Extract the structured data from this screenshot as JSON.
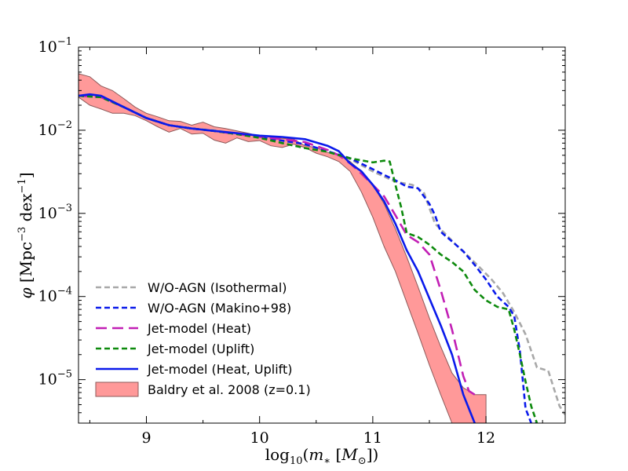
{
  "chart_data": {
    "type": "line",
    "xlabel": "log10(m* [M⊙])",
    "ylabel": "φ [Mpc⁻³ dex⁻¹]",
    "xlim": [
      8.4,
      12.7
    ],
    "ylim": [
      3e-06,
      0.1
    ],
    "yscale": "log",
    "grid": false,
    "legend_position": "lower-left",
    "x_ticks": [
      9,
      10,
      11,
      12
    ],
    "x_tick_labels": [
      "9",
      "10",
      "11",
      "12"
    ],
    "y_ticks": [
      1e-05,
      0.0001,
      0.001,
      0.01,
      0.1
    ],
    "y_tick_labels": [
      {
        "base": "10",
        "exp": "−5"
      },
      {
        "base": "10",
        "exp": "−4"
      },
      {
        "base": "10",
        "exp": "−3"
      },
      {
        "base": "10",
        "exp": "−2"
      },
      {
        "base": "10",
        "exp": "−1"
      }
    ],
    "band": {
      "name": "Baldry et al. 2008 (z=0.1)",
      "color": "#ff9999",
      "edge_color": "#8c5a5a",
      "x": [
        8.4,
        8.5,
        8.6,
        8.7,
        8.8,
        8.9,
        9.0,
        9.1,
        9.2,
        9.3,
        9.4,
        9.5,
        9.6,
        9.7,
        9.8,
        9.9,
        10.0,
        10.1,
        10.2,
        10.3,
        10.4,
        10.5,
        10.6,
        10.7,
        10.8,
        10.9,
        11.0,
        11.1,
        11.2,
        11.3,
        11.4,
        11.5,
        11.6,
        11.7,
        11.8,
        11.9,
        12.0
      ],
      "upper": [
        0.048,
        0.044,
        0.034,
        0.03,
        0.024,
        0.019,
        0.016,
        0.0145,
        0.013,
        0.0128,
        0.0115,
        0.0125,
        0.011,
        0.0105,
        0.0098,
        0.0092,
        0.0085,
        0.0083,
        0.008,
        0.0078,
        0.0065,
        0.0062,
        0.0054,
        0.005,
        0.0042,
        0.0032,
        0.0022,
        0.0013,
        0.00065,
        0.0003,
        0.00013,
        5.5e-05,
        2.5e-05,
        1.2e-05,
        8e-06,
        6.6e-06,
        6.6e-06
      ],
      "lower": [
        0.025,
        0.02,
        0.018,
        0.016,
        0.016,
        0.015,
        0.013,
        0.011,
        0.0095,
        0.0105,
        0.009,
        0.0092,
        0.0076,
        0.007,
        0.0081,
        0.0073,
        0.0075,
        0.0065,
        0.0062,
        0.0068,
        0.0062,
        0.0053,
        0.0048,
        0.0042,
        0.0032,
        0.0018,
        0.0009,
        0.0004,
        0.0002,
        8.5e-05,
        3.6e-05,
        1.5e-05,
        6.6e-06,
        3e-06,
        3e-06,
        3e-06,
        3e-06
      ]
    },
    "series": [
      {
        "name": "W/O-AGN (Isothermal)",
        "color": "#a8a8a8",
        "style": "dashed",
        "x": [
          8.4,
          8.6,
          8.8,
          9.0,
          9.2,
          9.4,
          9.6,
          9.8,
          10.0,
          10.2,
          10.4,
          10.6,
          10.8,
          11.0,
          11.2,
          11.35,
          11.45,
          11.55,
          11.65,
          11.75,
          11.85,
          11.95,
          12.05,
          12.15,
          12.25,
          12.35,
          12.45,
          12.55,
          12.65,
          12.7
        ],
        "y": [
          0.026,
          0.025,
          0.019,
          0.014,
          0.0115,
          0.0105,
          0.01,
          0.009,
          0.0082,
          0.0075,
          0.0068,
          0.0055,
          0.0045,
          0.0032,
          0.0024,
          0.0022,
          0.0018,
          0.00075,
          0.00055,
          0.0004,
          0.0003,
          0.00022,
          0.00016,
          0.00011,
          6.5e-05,
          3.5e-05,
          1.4e-05,
          1.28e-05,
          4.8e-06,
          3.8e-06
        ]
      },
      {
        "name": "W/O-AGN (Makino+98)",
        "color": "#0a1aeb",
        "style": "dashed",
        "x": [
          8.4,
          8.6,
          8.8,
          9.0,
          9.2,
          9.4,
          9.6,
          9.8,
          10.0,
          10.2,
          10.4,
          10.6,
          10.8,
          11.0,
          11.1,
          11.2,
          11.3,
          11.4,
          11.5,
          11.55,
          11.6,
          11.7,
          11.8,
          11.9,
          12.0,
          12.1,
          12.2,
          12.25,
          12.3,
          12.35,
          12.4,
          12.45
        ],
        "y": [
          0.026,
          0.025,
          0.019,
          0.014,
          0.0115,
          0.0105,
          0.0098,
          0.009,
          0.0082,
          0.0075,
          0.0068,
          0.0056,
          0.0046,
          0.0034,
          0.0029,
          0.0025,
          0.0021,
          0.002,
          0.0013,
          0.00095,
          0.0006,
          0.00046,
          0.00035,
          0.00024,
          0.00016,
          0.0001,
          7.5e-05,
          5.8e-05,
          2.2e-05,
          4.5e-06,
          3e-06,
          3e-06
        ]
      },
      {
        "name": "Jet-model (Heat)",
        "color": "#c21fb5",
        "style": "dashed",
        "x": [
          8.4,
          8.6,
          8.8,
          9.0,
          9.2,
          9.4,
          9.6,
          9.8,
          10.0,
          10.2,
          10.4,
          10.6,
          10.7,
          10.8,
          10.9,
          11.0,
          11.1,
          11.2,
          11.3,
          11.4,
          11.5,
          11.6,
          11.7,
          11.8,
          11.85,
          11.9
        ],
        "y": [
          0.026,
          0.025,
          0.019,
          0.014,
          0.0115,
          0.0105,
          0.0098,
          0.009,
          0.0083,
          0.0078,
          0.0072,
          0.0058,
          0.005,
          0.004,
          0.003,
          0.0022,
          0.0016,
          0.00095,
          0.00055,
          0.00045,
          0.00032,
          0.00012,
          4e-05,
          1.1e-05,
          7.3e-06,
          6.6e-06
        ]
      },
      {
        "name": "Jet-model (Uplift)",
        "color": "#0d8a0d",
        "style": "dashed",
        "x": [
          8.4,
          8.6,
          8.8,
          9.0,
          9.2,
          9.4,
          9.6,
          9.8,
          10.0,
          10.2,
          10.4,
          10.6,
          10.8,
          11.0,
          11.1,
          11.15,
          11.2,
          11.25,
          11.3,
          11.4,
          11.5,
          11.6,
          11.7,
          11.8,
          11.9,
          12.0,
          12.1,
          12.2,
          12.25,
          12.3,
          12.35,
          12.4,
          12.45
        ],
        "y": [
          0.026,
          0.025,
          0.019,
          0.014,
          0.0115,
          0.0105,
          0.0098,
          0.009,
          0.0081,
          0.007,
          0.0061,
          0.0055,
          0.0046,
          0.0041,
          0.0043,
          0.0042,
          0.0022,
          0.0012,
          0.00058,
          0.00052,
          0.00042,
          0.00032,
          0.00026,
          0.0002,
          0.00012,
          9e-05,
          7.5e-05,
          7e-05,
          4e-05,
          2e-05,
          9.5e-06,
          4.8e-06,
          3e-06
        ]
      },
      {
        "name": "Jet-model (Heat, Uplift)",
        "color": "#0a1aeb",
        "style": "solid",
        "x": [
          8.4,
          8.5,
          8.6,
          8.8,
          9.0,
          9.2,
          9.4,
          9.6,
          9.8,
          10.0,
          10.2,
          10.4,
          10.6,
          10.7,
          10.8,
          10.9,
          11.0,
          11.1,
          11.2,
          11.3,
          11.4,
          11.5,
          11.6,
          11.7,
          11.8,
          11.9
        ],
        "y": [
          0.026,
          0.027,
          0.026,
          0.019,
          0.014,
          0.0115,
          0.0105,
          0.0098,
          0.0092,
          0.0086,
          0.0083,
          0.0078,
          0.0065,
          0.0056,
          0.004,
          0.0032,
          0.0022,
          0.0014,
          0.00075,
          0.00036,
          0.0002,
          9.5e-05,
          4.5e-05,
          2e-05,
          6.6e-06,
          3e-06
        ]
      }
    ]
  }
}
